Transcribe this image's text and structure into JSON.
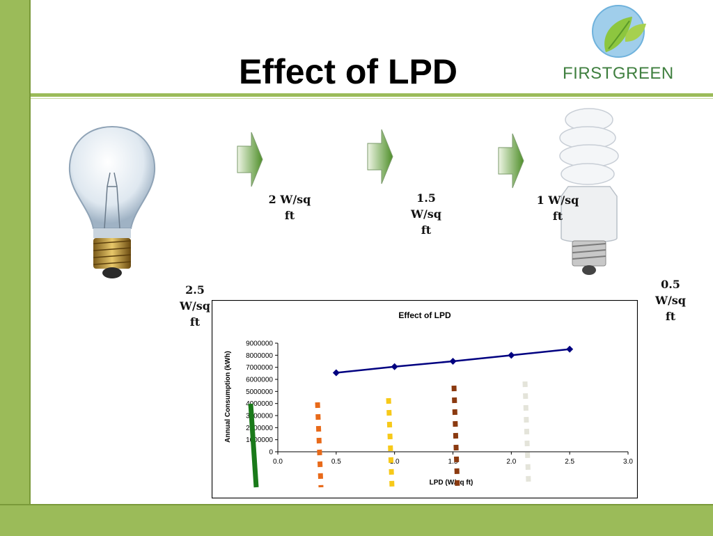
{
  "slide": {
    "title": "Effect of LPD",
    "brand": "FIRSTGREEN"
  },
  "labels": [
    {
      "id": "lpd-2-5",
      "text_lines": [
        "2.5",
        "W/sq",
        "ft"
      ]
    },
    {
      "id": "lpd-2",
      "text_lines": [
        "2 W/sq",
        "ft"
      ]
    },
    {
      "id": "lpd-1-5",
      "text_lines": [
        "1.5",
        "W/sq",
        "ft"
      ]
    },
    {
      "id": "lpd-1",
      "text_lines": [
        "1 W/sq",
        "ft"
      ]
    },
    {
      "id": "lpd-0-5",
      "text_lines": [
        "0.5",
        "W/sq",
        "ft"
      ]
    }
  ],
  "colors": {
    "accent": "#9bbb59",
    "series_line": "#000080",
    "brand_text": "#3f7f3f"
  },
  "icons": [
    "incandescent-bulb-icon",
    "cfl-bulb-icon",
    "green-arrow-icon",
    "leaf-logo-icon"
  ],
  "chart_data": {
    "type": "line",
    "title": "Effect of LPD",
    "xlabel": "LPD (W/sq ft)",
    "ylabel": "Annual Consumption (kWh)",
    "xlim": [
      0,
      3
    ],
    "ylim": [
      0,
      9000000
    ],
    "x_ticks": [
      "0.0",
      "0.5",
      "1.0",
      "1.5",
      "2.0",
      "2.5",
      "3.0"
    ],
    "y_ticks": [
      "0",
      "1000000",
      "2000000",
      "3000000",
      "4000000",
      "5000000",
      "6000000",
      "7000000",
      "8000000",
      "9000000"
    ],
    "grid": false,
    "legend": "none",
    "series": [
      {
        "x": [
          0.5,
          1.0,
          1.5,
          2.0,
          2.5
        ],
        "y": [
          6550000,
          7050000,
          7500000,
          8000000,
          8500000
        ],
        "color": "#000080",
        "marker": "diamond"
      }
    ]
  }
}
